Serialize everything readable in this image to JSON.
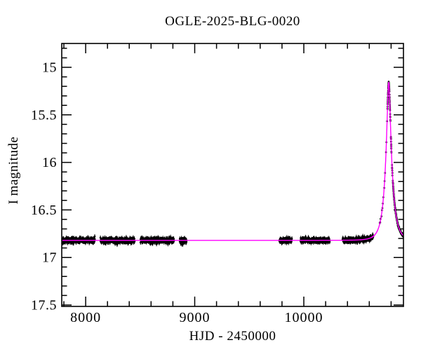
{
  "figure": {
    "background_color": "#ffffff",
    "frame_color": "#000000"
  },
  "chart_data": {
    "type": "scatter",
    "title": "OGLE-2025-BLG-0020",
    "xlabel": "HJD - 2450000",
    "ylabel": "I magnitude",
    "xlim": [
      7781,
      10913
    ],
    "ylim": [
      17.515,
      14.749
    ],
    "y_axis_inverted": true,
    "grid": false,
    "legend": null,
    "x_major_ticks": [
      8000,
      9000,
      10000
    ],
    "x_minor_step": 200,
    "y_major_ticks": [
      15,
      15.5,
      16,
      16.5,
      17,
      17.5
    ],
    "y_minor_step": 0.1,
    "point_color": "#000000",
    "model_color": "#ff00ff",
    "baseline_mag": 16.82,
    "peak_mag": 15.15,
    "peak_time": 10778,
    "model": {
      "kind": "paczynski",
      "t0": 10778,
      "tE": 62,
      "u0": 0.22,
      "I0": 16.82
    },
    "seasons": [
      {
        "t_start": 7790,
        "t_end": 8085,
        "n": 300,
        "sigma": 0.013,
        "err": 0.023
      },
      {
        "t_start": 8135,
        "t_end": 8450,
        "n": 320,
        "sigma": 0.013,
        "err": 0.023
      },
      {
        "t_start": 8502,
        "t_end": 8810,
        "n": 320,
        "sigma": 0.013,
        "err": 0.023
      },
      {
        "t_start": 8862,
        "t_end": 8926,
        "n": 70,
        "sigma": 0.013,
        "err": 0.023
      },
      {
        "t_start": 9775,
        "t_end": 9891,
        "n": 110,
        "sigma": 0.012,
        "err": 0.022
      },
      {
        "t_start": 9968,
        "t_end": 10238,
        "n": 240,
        "sigma": 0.012,
        "err": 0.022
      },
      {
        "t_start": 10354,
        "t_end": 10637,
        "n": 240,
        "sigma": 0.012,
        "err": 0.022
      },
      {
        "t_start": 10692,
        "t_end": 10765,
        "n": 14,
        "sigma": 0.006,
        "err": 0.016,
        "scale_err": true
      },
      {
        "t_start": 10766,
        "t_end": 10913,
        "n": 300,
        "sigma": 0.006,
        "err": 0.016,
        "scale_err": true,
        "gaps": [
          [
            10793.5,
            10797.5
          ],
          [
            10803.5,
            10808.0
          ],
          [
            10812.5,
            10815.5
          ]
        ]
      }
    ],
    "seed": 7
  }
}
